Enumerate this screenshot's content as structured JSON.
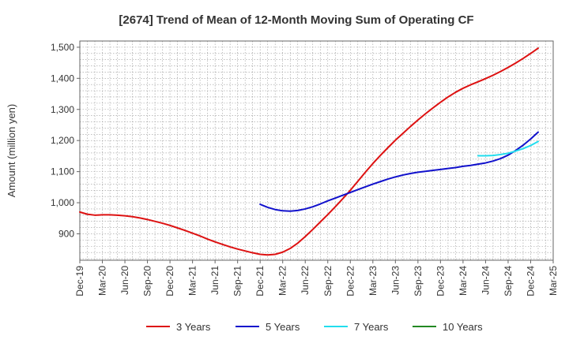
{
  "chart_data": {
    "type": "line",
    "title": "[2674]  Trend of Mean of 12-Month Moving Sum of Operating CF",
    "xlabel": "",
    "ylabel": "Amount (million yen)",
    "ylim": [
      815,
      1520
    ],
    "yticks": [
      900,
      1000,
      1100,
      1200,
      1300,
      1400,
      1500
    ],
    "ytick_labels": [
      "900",
      "1,000",
      "1,100",
      "1,200",
      "1,300",
      "1,400",
      "1,500"
    ],
    "x_start": "Dec-19",
    "x_months": 63,
    "x_tick_labels": [
      "Dec-19",
      "Mar-20",
      "Jun-20",
      "Sep-20",
      "Dec-20",
      "Mar-21",
      "Jun-21",
      "Sep-21",
      "Dec-21",
      "Mar-22",
      "Jun-22",
      "Sep-22",
      "Dec-22",
      "Mar-23",
      "Jun-23",
      "Sep-23",
      "Dec-23",
      "Mar-24",
      "Jun-24",
      "Sep-24",
      "Dec-24",
      "Mar-25"
    ],
    "grid": true,
    "legend_position": "bottom",
    "series": [
      {
        "name": "3 Years",
        "color": "#dd1111",
        "points": [
          [
            0,
            970
          ],
          [
            1,
            963
          ],
          [
            2,
            960
          ],
          [
            3,
            961
          ],
          [
            4,
            961
          ],
          [
            5,
            960
          ],
          [
            6,
            958
          ],
          [
            7,
            955
          ],
          [
            8,
            951
          ],
          [
            9,
            946
          ],
          [
            10,
            940
          ],
          [
            11,
            934
          ],
          [
            12,
            927
          ],
          [
            13,
            919
          ],
          [
            14,
            911
          ],
          [
            15,
            902
          ],
          [
            16,
            893
          ],
          [
            17,
            883
          ],
          [
            18,
            874
          ],
          [
            19,
            866
          ],
          [
            20,
            858
          ],
          [
            21,
            851
          ],
          [
            22,
            845
          ],
          [
            23,
            839
          ],
          [
            24,
            834
          ],
          [
            25,
            832
          ],
          [
            26,
            834
          ],
          [
            27,
            841
          ],
          [
            28,
            853
          ],
          [
            29,
            870
          ],
          [
            30,
            891
          ],
          [
            31,
            914
          ],
          [
            32,
            938
          ],
          [
            33,
            962
          ],
          [
            34,
            987
          ],
          [
            35,
            1013
          ],
          [
            36,
            1040
          ],
          [
            37,
            1069
          ],
          [
            38,
            1098
          ],
          [
            39,
            1126
          ],
          [
            40,
            1152
          ],
          [
            41,
            1177
          ],
          [
            42,
            1201
          ],
          [
            43,
            1223
          ],
          [
            44,
            1245
          ],
          [
            45,
            1266
          ],
          [
            46,
            1286
          ],
          [
            47,
            1305
          ],
          [
            48,
            1323
          ],
          [
            49,
            1340
          ],
          [
            50,
            1355
          ],
          [
            51,
            1368
          ],
          [
            52,
            1379
          ],
          [
            53,
            1389
          ],
          [
            54,
            1399
          ],
          [
            55,
            1410
          ],
          [
            56,
            1422
          ],
          [
            57,
            1435
          ],
          [
            58,
            1449
          ],
          [
            59,
            1464
          ],
          [
            60,
            1480
          ],
          [
            61,
            1497
          ]
        ]
      },
      {
        "name": "5 Years",
        "color": "#1111cc",
        "points": [
          [
            24,
            995
          ],
          [
            25,
            985
          ],
          [
            26,
            978
          ],
          [
            27,
            974
          ],
          [
            28,
            973
          ],
          [
            29,
            975
          ],
          [
            30,
            980
          ],
          [
            31,
            987
          ],
          [
            32,
            996
          ],
          [
            33,
            1006
          ],
          [
            34,
            1015
          ],
          [
            35,
            1024
          ],
          [
            36,
            1033
          ],
          [
            37,
            1042
          ],
          [
            38,
            1051
          ],
          [
            39,
            1060
          ],
          [
            40,
            1068
          ],
          [
            41,
            1076
          ],
          [
            42,
            1083
          ],
          [
            43,
            1089
          ],
          [
            44,
            1094
          ],
          [
            45,
            1098
          ],
          [
            46,
            1101
          ],
          [
            47,
            1104
          ],
          [
            48,
            1107
          ],
          [
            49,
            1110
          ],
          [
            50,
            1113
          ],
          [
            51,
            1117
          ],
          [
            52,
            1120
          ],
          [
            53,
            1124
          ],
          [
            54,
            1128
          ],
          [
            55,
            1134
          ],
          [
            56,
            1142
          ],
          [
            57,
            1153
          ],
          [
            58,
            1168
          ],
          [
            59,
            1185
          ],
          [
            60,
            1205
          ],
          [
            61,
            1227
          ]
        ]
      },
      {
        "name": "7 Years",
        "color": "#22ddee",
        "points": [
          [
            53,
            1151
          ],
          [
            54,
            1151
          ],
          [
            55,
            1152
          ],
          [
            56,
            1155
          ],
          [
            57,
            1159
          ],
          [
            58,
            1166
          ],
          [
            59,
            1174
          ],
          [
            60,
            1184
          ],
          [
            61,
            1197
          ]
        ]
      },
      {
        "name": "10 Years",
        "color": "#228822",
        "points": []
      }
    ]
  }
}
